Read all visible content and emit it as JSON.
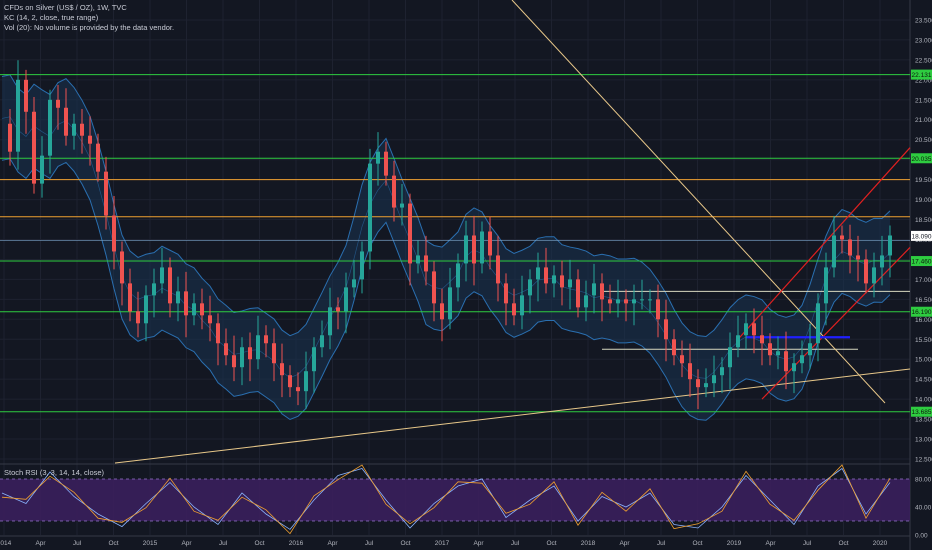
{
  "legend": {
    "symbol": "CFDs on Silver (US$ / OZ), 1W, TVC",
    "kc": "KC (14, 2, close, true range)",
    "vol": "Vol (20): No volume is provided by the data vendor."
  },
  "rsi_label": "Stoch RSI (3, 3, 14, 14, close)",
  "colors": {
    "background": "#131722",
    "grid": "#1e2230",
    "up": "#26a69a",
    "down": "#ef5350",
    "channel": "#2a6fb0",
    "channel_fill": "#1a3350",
    "green_level": "#2ecc40",
    "orange_level": "#f0a030",
    "trend": "#e8c88a",
    "red_channel": "#e02020",
    "blue_line": "#2020ff",
    "rsi_fill": "#3a1f5c",
    "rsi_line": "#f0a030",
    "rsi_band": "#9575cd"
  },
  "chart_data": [
    {
      "type": "candlestick",
      "title": "CFDs on Silver (US$ / OZ), 1W, TVC",
      "ylim": [
        12.4,
        24.0
      ],
      "y_ticks": [
        12.5,
        13.0,
        13.5,
        14.0,
        14.5,
        15.0,
        15.5,
        16.0,
        16.5,
        17.0,
        17.5,
        18.0,
        18.5,
        19.0,
        19.5,
        20.0,
        20.5,
        21.0,
        21.5,
        22.0,
        22.5,
        23.0,
        23.5
      ],
      "x_ticks": [
        "2014",
        "Apr",
        "Jul",
        "Oct",
        "2015",
        "Apr",
        "Jul",
        "Oct",
        "2016",
        "Apr",
        "Jul",
        "Oct",
        "2017",
        "Apr",
        "Jul",
        "Oct",
        "2018",
        "Apr",
        "Jul",
        "Oct",
        "2019",
        "Apr",
        "Jul",
        "Oct",
        "2020"
      ],
      "price_path": [
        [
          0,
          20.9
        ],
        [
          8,
          20.2
        ],
        [
          16,
          22.0
        ],
        [
          24,
          21.2
        ],
        [
          32,
          19.4
        ],
        [
          40,
          20.1
        ],
        [
          48,
          21.5
        ],
        [
          56,
          21.3
        ],
        [
          64,
          20.6
        ],
        [
          72,
          20.9
        ],
        [
          80,
          20.6
        ],
        [
          88,
          20.4
        ],
        [
          96,
          19.7
        ],
        [
          104,
          18.6
        ],
        [
          112,
          17.7
        ],
        [
          120,
          16.9
        ],
        [
          128,
          16.2
        ],
        [
          136,
          15.9
        ],
        [
          144,
          16.6
        ],
        [
          152,
          16.9
        ],
        [
          160,
          17.3
        ],
        [
          168,
          16.4
        ],
        [
          176,
          16.7
        ],
        [
          184,
          16.1
        ],
        [
          192,
          16.4
        ],
        [
          200,
          16.1
        ],
        [
          208,
          15.9
        ],
        [
          216,
          15.4
        ],
        [
          224,
          15.1
        ],
        [
          232,
          14.8
        ],
        [
          240,
          15.3
        ],
        [
          248,
          15.0
        ],
        [
          256,
          15.6
        ],
        [
          264,
          15.4
        ],
        [
          272,
          14.9
        ],
        [
          280,
          14.6
        ],
        [
          288,
          14.3
        ],
        [
          296,
          14.2
        ],
        [
          304,
          14.7
        ],
        [
          312,
          15.3
        ],
        [
          320,
          15.6
        ],
        [
          328,
          16.3
        ],
        [
          336,
          16.2
        ],
        [
          344,
          16.8
        ],
        [
          352,
          17.0
        ],
        [
          360,
          17.7
        ],
        [
          368,
          19.9
        ],
        [
          376,
          20.2
        ],
        [
          384,
          19.6
        ],
        [
          392,
          18.8
        ],
        [
          400,
          18.9
        ],
        [
          408,
          17.4
        ],
        [
          416,
          17.6
        ],
        [
          424,
          17.2
        ],
        [
          432,
          16.4
        ],
        [
          440,
          16.0
        ],
        [
          448,
          16.8
        ],
        [
          456,
          17.4
        ],
        [
          464,
          18.1
        ],
        [
          472,
          17.4
        ],
        [
          480,
          18.2
        ],
        [
          488,
          17.6
        ],
        [
          496,
          16.9
        ],
        [
          504,
          16.4
        ],
        [
          512,
          16.1
        ],
        [
          520,
          16.6
        ],
        [
          528,
          17.0
        ],
        [
          536,
          17.3
        ],
        [
          544,
          16.9
        ],
        [
          552,
          17.1
        ],
        [
          560,
          16.8
        ],
        [
          568,
          17.0
        ],
        [
          576,
          16.3
        ],
        [
          584,
          16.6
        ],
        [
          592,
          16.9
        ],
        [
          600,
          16.5
        ],
        [
          608,
          16.4
        ],
        [
          616,
          16.5
        ],
        [
          624,
          16.4
        ],
        [
          632,
          16.5
        ],
        [
          640,
          16.5
        ],
        [
          648,
          16.5
        ],
        [
          656,
          16.0
        ],
        [
          664,
          15.5
        ],
        [
          672,
          15.1
        ],
        [
          680,
          14.9
        ],
        [
          688,
          14.5
        ],
        [
          696,
          14.3
        ],
        [
          704,
          14.4
        ],
        [
          712,
          14.6
        ],
        [
          720,
          14.8
        ],
        [
          728,
          15.3
        ],
        [
          736,
          15.6
        ],
        [
          744,
          15.9
        ],
        [
          752,
          15.6
        ],
        [
          760,
          15.4
        ],
        [
          768,
          15.1
        ],
        [
          776,
          15.2
        ],
        [
          784,
          14.7
        ],
        [
          792,
          14.9
        ],
        [
          800,
          15.1
        ],
        [
          808,
          15.4
        ],
        [
          816,
          16.4
        ],
        [
          824,
          17.3
        ],
        [
          832,
          18.1
        ],
        [
          840,
          18.0
        ],
        [
          848,
          17.6
        ],
        [
          856,
          17.5
        ],
        [
          864,
          16.9
        ],
        [
          872,
          17.3
        ],
        [
          880,
          17.6
        ],
        [
          888,
          18.1
        ]
      ],
      "support_levels": [
        22.131,
        20.035,
        17.46,
        16.19,
        13.685
      ],
      "resistance_levels": [
        19.5,
        18.57,
        16.7,
        15.25
      ],
      "current_price": 18.09,
      "keltner_channel": "KC (14, 2, close, true range)"
    },
    {
      "type": "line",
      "title": "Stoch RSI (3, 3, 14, 14, close)",
      "ylim": [
        0,
        100
      ],
      "y_ticks": [
        80.0,
        40.0,
        0.0
      ],
      "bands": [
        20,
        80
      ],
      "x": [
        0,
        24,
        48,
        72,
        96,
        120,
        144,
        168,
        192,
        216,
        240,
        264,
        288,
        312,
        336,
        360,
        384,
        408,
        432,
        456,
        480,
        504,
        528,
        552,
        576,
        600,
        624,
        648,
        672,
        696,
        720,
        744,
        768,
        792,
        816,
        840,
        864,
        888
      ],
      "values": [
        60,
        45,
        90,
        55,
        30,
        12,
        45,
        75,
        40,
        15,
        60,
        30,
        8,
        50,
        85,
        95,
        50,
        10,
        45,
        70,
        80,
        25,
        50,
        70,
        20,
        55,
        40,
        60,
        15,
        10,
        40,
        85,
        50,
        15,
        70,
        95,
        30,
        75
      ]
    }
  ]
}
